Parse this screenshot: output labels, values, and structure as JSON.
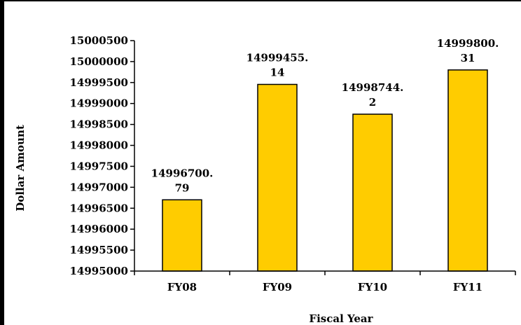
{
  "chart_data": {
    "type": "bar",
    "categories": [
      "FY08",
      "FY09",
      "FY10",
      "FY11"
    ],
    "values": [
      14996700.79,
      14999455.14,
      14998744.2,
      14999800.31
    ],
    "data_labels": [
      [
        "14996700.",
        "79"
      ],
      [
        "14999455.",
        "14"
      ],
      [
        "14998744.",
        "2"
      ],
      [
        "14999800.",
        "31"
      ]
    ],
    "xlabel": "Fiscal Year",
    "ylabel": "Dollar Amount",
    "ylim": [
      14995000,
      15000500
    ],
    "yticks": [
      14995000,
      14995500,
      14996000,
      14996500,
      14997000,
      14997500,
      14998000,
      14998500,
      14999000,
      14999500,
      15000000,
      15000500
    ],
    "grid": false,
    "legend": "none",
    "colors": {
      "bar_fill": "#FFCC00",
      "bar_stroke": "#000000",
      "axis": "#000000",
      "frame": "#000000"
    }
  }
}
